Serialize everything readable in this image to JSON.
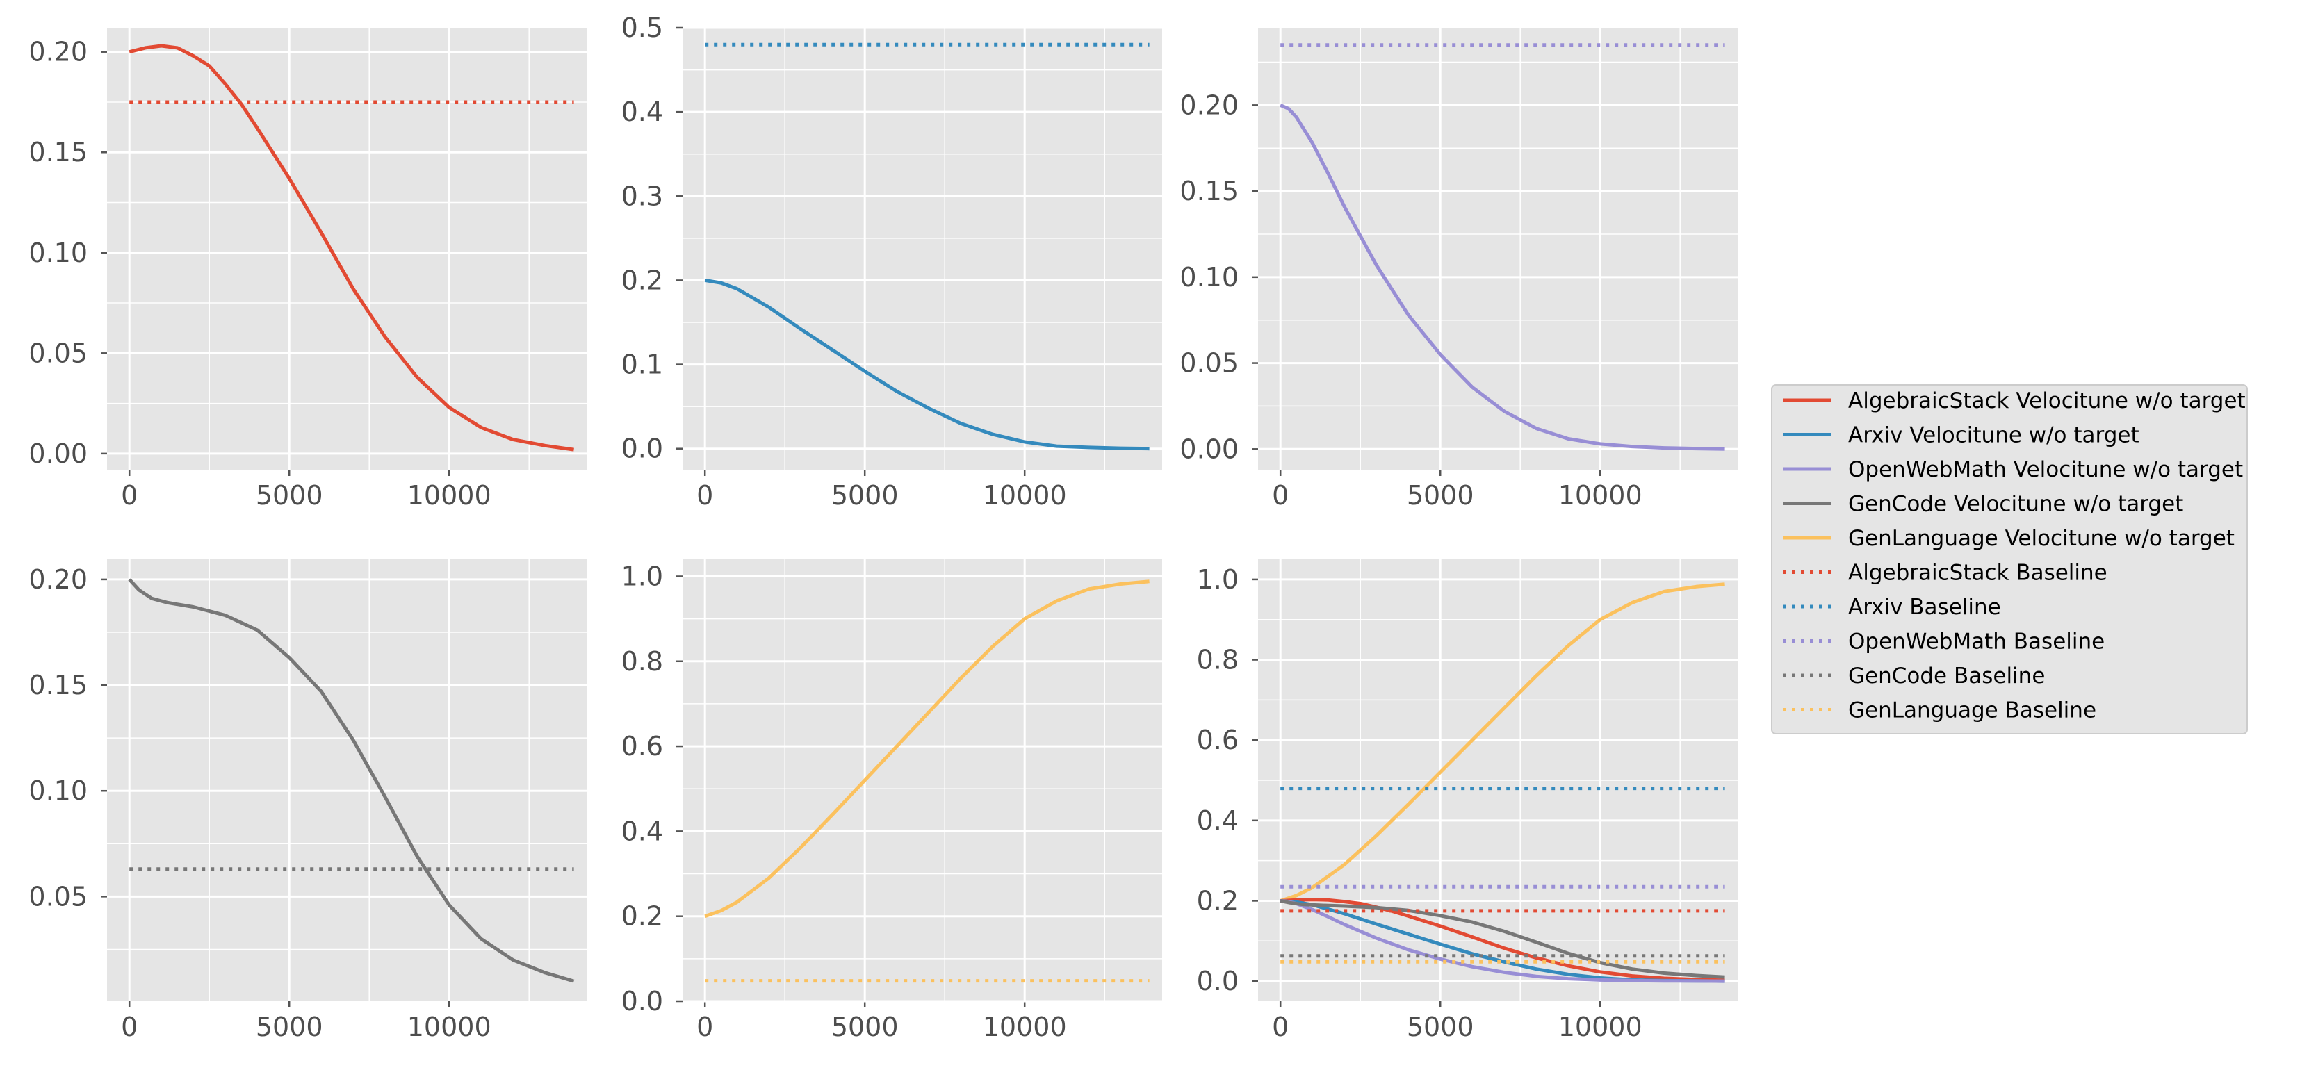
{
  "colors": {
    "algebraic": "#e24a33",
    "arxiv": "#348abd",
    "openwebmath": "#988ed5",
    "gencode": "#777777",
    "genlanguage": "#fbc15e",
    "panel_bg": "#e5e5e5",
    "grid": "#ffffff"
  },
  "legend": {
    "entries": [
      {
        "label": "AlgebraicStack Velocitune w/o target",
        "color": "#e24a33",
        "style": "solid"
      },
      {
        "label": "Arxiv Velocitune w/o target",
        "color": "#348abd",
        "style": "solid"
      },
      {
        "label": "OpenWebMath Velocitune w/o target",
        "color": "#988ed5",
        "style": "solid"
      },
      {
        "label": "GenCode Velocitune w/o target",
        "color": "#777777",
        "style": "solid"
      },
      {
        "label": "GenLanguage Velocitune w/o target",
        "color": "#fbc15e",
        "style": "solid"
      },
      {
        "label": "AlgebraicStack Baseline",
        "color": "#e24a33",
        "style": "dotted"
      },
      {
        "label": "Arxiv Baseline",
        "color": "#348abd",
        "style": "dotted"
      },
      {
        "label": "OpenWebMath Baseline",
        "color": "#988ed5",
        "style": "dotted"
      },
      {
        "label": "GenCode Baseline",
        "color": "#777777",
        "style": "dotted"
      },
      {
        "label": "GenLanguage Baseline",
        "color": "#fbc15e",
        "style": "dotted"
      }
    ]
  },
  "chart_data": [
    {
      "type": "line",
      "panel": "algebraicstack",
      "xlim": [
        -700,
        14300
      ],
      "ylim": [
        -0.008,
        0.212
      ],
      "xticks": [
        0,
        5000,
        10000
      ],
      "xtick_labels": [
        "0",
        "5000",
        "10000"
      ],
      "yticks": [
        0.0,
        0.05,
        0.1,
        0.15,
        0.2
      ],
      "ytick_labels": [
        "0.00",
        "0.05",
        "0.10",
        "0.15",
        "0.20"
      ],
      "series": [
        {
          "name": "AlgebraicStack Velocitune w/o target",
          "color": "#e24a33",
          "style": "solid",
          "x": [
            0,
            500,
            1000,
            1500,
            2000,
            2500,
            3000,
            3500,
            4000,
            5000,
            6000,
            7000,
            8000,
            9000,
            10000,
            11000,
            12000,
            13000,
            13900
          ],
          "y": [
            0.2,
            0.202,
            0.203,
            0.202,
            0.198,
            0.193,
            0.184,
            0.174,
            0.162,
            0.137,
            0.11,
            0.082,
            0.058,
            0.038,
            0.023,
            0.013,
            0.007,
            0.004,
            0.002
          ]
        },
        {
          "name": "AlgebraicStack Baseline",
          "color": "#e24a33",
          "style": "dotted",
          "x": [
            0,
            13900
          ],
          "y": [
            0.175,
            0.175
          ]
        }
      ]
    },
    {
      "type": "line",
      "panel": "arxiv",
      "xlim": [
        -700,
        14300
      ],
      "ylim": [
        -0.025,
        0.5
      ],
      "xticks": [
        0,
        5000,
        10000
      ],
      "xtick_labels": [
        "0",
        "5000",
        "10000"
      ],
      "yticks": [
        0.0,
        0.1,
        0.2,
        0.3,
        0.4,
        0.5
      ],
      "ytick_labels": [
        "0.0",
        "0.1",
        "0.2",
        "0.3",
        "0.4",
        "0.5"
      ],
      "series": [
        {
          "name": "Arxiv Velocitune w/o target",
          "color": "#348abd",
          "style": "solid",
          "x": [
            0,
            500,
            1000,
            2000,
            3000,
            4000,
            5000,
            6000,
            7000,
            8000,
            9000,
            10000,
            11000,
            12000,
            13000,
            13900
          ],
          "y": [
            0.2,
            0.197,
            0.19,
            0.168,
            0.142,
            0.117,
            0.092,
            0.068,
            0.048,
            0.03,
            0.017,
            0.008,
            0.003,
            0.0015,
            0.0005,
            0.0
          ]
        },
        {
          "name": "Arxiv Baseline",
          "color": "#348abd",
          "style": "dotted",
          "x": [
            0,
            13900
          ],
          "y": [
            0.48,
            0.48
          ]
        }
      ]
    },
    {
      "type": "line",
      "panel": "openwebmath",
      "xlim": [
        -700,
        14300
      ],
      "ylim": [
        -0.012,
        0.245
      ],
      "xticks": [
        0,
        5000,
        10000
      ],
      "xtick_labels": [
        "0",
        "5000",
        "10000"
      ],
      "yticks": [
        0.0,
        0.05,
        0.1,
        0.15,
        0.2
      ],
      "ytick_labels": [
        "0.00",
        "0.05",
        "0.10",
        "0.15",
        "0.20"
      ],
      "series": [
        {
          "name": "OpenWebMath Velocitune w/o target",
          "color": "#988ed5",
          "style": "solid",
          "x": [
            0,
            250,
            500,
            1000,
            1500,
            2000,
            3000,
            4000,
            5000,
            6000,
            7000,
            8000,
            9000,
            10000,
            11000,
            12000,
            13000,
            13900
          ],
          "y": [
            0.2,
            0.198,
            0.193,
            0.178,
            0.16,
            0.141,
            0.107,
            0.078,
            0.055,
            0.036,
            0.022,
            0.012,
            0.006,
            0.003,
            0.0015,
            0.0007,
            0.0003,
            0.0
          ]
        },
        {
          "name": "OpenWebMath Baseline",
          "color": "#988ed5",
          "style": "dotted",
          "x": [
            0,
            13900
          ],
          "y": [
            0.235,
            0.235
          ]
        }
      ]
    },
    {
      "type": "line",
      "panel": "gencode",
      "xlim": [
        -700,
        14300
      ],
      "ylim": [
        0.0005,
        0.2095
      ],
      "xticks": [
        0,
        5000,
        10000
      ],
      "xtick_labels": [
        "0",
        "5000",
        "10000"
      ],
      "yticks": [
        0.05,
        0.1,
        0.15,
        0.2
      ],
      "ytick_labels": [
        "0.05",
        "0.10",
        "0.15",
        "0.20"
      ],
      "series": [
        {
          "name": "GenCode Velocitune w/o target",
          "color": "#777777",
          "style": "solid",
          "x": [
            0,
            300,
            700,
            1200,
            2000,
            3000,
            4000,
            5000,
            6000,
            7000,
            8000,
            9000,
            10000,
            11000,
            12000,
            13000,
            13900
          ],
          "y": [
            0.2,
            0.195,
            0.191,
            0.189,
            0.187,
            0.183,
            0.176,
            0.163,
            0.147,
            0.124,
            0.097,
            0.069,
            0.046,
            0.03,
            0.02,
            0.014,
            0.01
          ]
        },
        {
          "name": "GenCode Baseline",
          "color": "#777777",
          "style": "dotted",
          "x": [
            0,
            13900
          ],
          "y": [
            0.063,
            0.063
          ]
        }
      ]
    },
    {
      "type": "line",
      "panel": "genlanguage",
      "xlim": [
        -700,
        14300
      ],
      "ylim": [
        0.0,
        1.04
      ],
      "xticks": [
        0,
        5000,
        10000
      ],
      "xtick_labels": [
        "0",
        "5000",
        "10000"
      ],
      "yticks": [
        0.0,
        0.2,
        0.4,
        0.6,
        0.8,
        1.0
      ],
      "ytick_labels": [
        "0.0",
        "0.2",
        "0.4",
        "0.6",
        "0.8",
        "1.0"
      ],
      "series": [
        {
          "name": "GenLanguage Velocitune w/o target",
          "color": "#fbc15e",
          "style": "solid",
          "x": [
            0,
            500,
            1000,
            2000,
            3000,
            4000,
            5000,
            6000,
            7000,
            8000,
            9000,
            10000,
            11000,
            12000,
            13000,
            13900
          ],
          "y": [
            0.2,
            0.213,
            0.233,
            0.29,
            0.362,
            0.44,
            0.52,
            0.6,
            0.68,
            0.76,
            0.835,
            0.9,
            0.942,
            0.97,
            0.982,
            0.988
          ]
        },
        {
          "name": "GenLanguage Baseline",
          "color": "#fbc15e",
          "style": "dotted",
          "x": [
            0,
            13900
          ],
          "y": [
            0.048,
            0.048
          ]
        }
      ]
    },
    {
      "type": "line",
      "panel": "combined",
      "xlim": [
        -700,
        14300
      ],
      "ylim": [
        -0.05,
        1.05
      ],
      "xticks": [
        0,
        5000,
        10000
      ],
      "xtick_labels": [
        "0",
        "5000",
        "10000"
      ],
      "yticks": [
        0.0,
        0.2,
        0.4,
        0.6,
        0.8,
        1.0
      ],
      "ytick_labels": [
        "0.0",
        "0.2",
        "0.4",
        "0.6",
        "0.8",
        "1.0"
      ],
      "series": [
        {
          "name": "GenLanguage Velocitune w/o target",
          "color": "#fbc15e",
          "style": "solid",
          "x": [
            0,
            500,
            1000,
            2000,
            3000,
            4000,
            5000,
            6000,
            7000,
            8000,
            9000,
            10000,
            11000,
            12000,
            13000,
            13900
          ],
          "y": [
            0.2,
            0.213,
            0.233,
            0.29,
            0.362,
            0.44,
            0.52,
            0.6,
            0.68,
            0.76,
            0.835,
            0.9,
            0.942,
            0.97,
            0.982,
            0.988
          ]
        },
        {
          "name": "AlgebraicStack Velocitune w/o target",
          "color": "#e24a33",
          "style": "solid",
          "x": [
            0,
            500,
            1000,
            1500,
            2000,
            2500,
            3000,
            3500,
            4000,
            5000,
            6000,
            7000,
            8000,
            9000,
            10000,
            11000,
            12000,
            13000,
            13900
          ],
          "y": [
            0.2,
            0.202,
            0.203,
            0.202,
            0.198,
            0.193,
            0.184,
            0.174,
            0.162,
            0.137,
            0.11,
            0.082,
            0.058,
            0.038,
            0.023,
            0.013,
            0.007,
            0.004,
            0.002
          ]
        },
        {
          "name": "Arxiv Velocitune w/o target",
          "color": "#348abd",
          "style": "solid",
          "x": [
            0,
            500,
            1000,
            2000,
            3000,
            4000,
            5000,
            6000,
            7000,
            8000,
            9000,
            10000,
            11000,
            12000,
            13000,
            13900
          ],
          "y": [
            0.2,
            0.197,
            0.19,
            0.168,
            0.142,
            0.117,
            0.092,
            0.068,
            0.048,
            0.03,
            0.017,
            0.008,
            0.003,
            0.0015,
            0.0005,
            0.0
          ]
        },
        {
          "name": "OpenWebMath Velocitune w/o target",
          "color": "#988ed5",
          "style": "solid",
          "x": [
            0,
            250,
            500,
            1000,
            1500,
            2000,
            3000,
            4000,
            5000,
            6000,
            7000,
            8000,
            9000,
            10000,
            11000,
            12000,
            13000,
            13900
          ],
          "y": [
            0.2,
            0.198,
            0.193,
            0.178,
            0.16,
            0.141,
            0.107,
            0.078,
            0.055,
            0.036,
            0.022,
            0.012,
            0.006,
            0.003,
            0.0015,
            0.0007,
            0.0003,
            0.0
          ]
        },
        {
          "name": "GenCode Velocitune w/o target",
          "color": "#777777",
          "style": "solid",
          "x": [
            0,
            300,
            700,
            1200,
            2000,
            3000,
            4000,
            5000,
            6000,
            7000,
            8000,
            9000,
            10000,
            11000,
            12000,
            13000,
            13900
          ],
          "y": [
            0.2,
            0.195,
            0.191,
            0.189,
            0.187,
            0.183,
            0.176,
            0.163,
            0.147,
            0.124,
            0.097,
            0.069,
            0.046,
            0.03,
            0.02,
            0.014,
            0.01
          ]
        },
        {
          "name": "Arxiv Baseline",
          "color": "#348abd",
          "style": "dotted",
          "x": [
            0,
            13900
          ],
          "y": [
            0.48,
            0.48
          ]
        },
        {
          "name": "OpenWebMath Baseline",
          "color": "#988ed5",
          "style": "dotted",
          "x": [
            0,
            13900
          ],
          "y": [
            0.235,
            0.235
          ]
        },
        {
          "name": "AlgebraicStack Baseline",
          "color": "#e24a33",
          "style": "dotted",
          "x": [
            0,
            13900
          ],
          "y": [
            0.175,
            0.175
          ]
        },
        {
          "name": "GenCode Baseline",
          "color": "#777777",
          "style": "dotted",
          "x": [
            0,
            13900
          ],
          "y": [
            0.063,
            0.063
          ]
        },
        {
          "name": "GenLanguage Baseline",
          "color": "#fbc15e",
          "style": "dotted",
          "x": [
            0,
            13900
          ],
          "y": [
            0.048,
            0.048
          ]
        }
      ]
    }
  ]
}
